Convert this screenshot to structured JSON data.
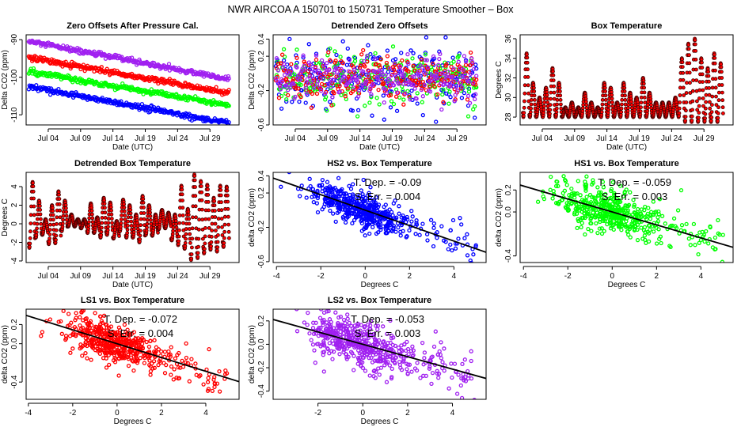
{
  "title": "NWR   AIRCOA A   150701 to 150731   Temperature Smoother – Box",
  "chart_data": [
    {
      "type": "scatter",
      "title": "Zero Offsets After Pressure Cal.",
      "xlabel": "Date (UTC)",
      "ylabel": "Delta CO2 (ppm)",
      "xlim": [
        "2015-06-30T14:00",
        "2015-08-02T12:00"
      ],
      "ylim": [
        -112.7,
        -88.7
      ],
      "x_ticks": [
        {
          "label": "Jul 04",
          "date": "2015-07-04"
        },
        {
          "label": "Jul 09",
          "date": "2015-07-09"
        },
        {
          "label": "Jul 14",
          "date": "2015-07-14"
        },
        {
          "label": "Jul 19",
          "date": "2015-07-19"
        },
        {
          "label": "Jul 24",
          "date": "2015-07-24"
        },
        {
          "label": "Jul 29",
          "date": "2015-07-29"
        }
      ],
      "y_ticks": [
        {
          "label": "-90",
          "value": -90
        },
        {
          "label": "-100",
          "value": -100
        },
        {
          "label": "-110",
          "value": -110
        }
      ],
      "series": [
        {
          "color": "#a020f0",
          "trend": {
            "start_date": "2015-07-01",
            "start": -90.5,
            "end_date": "2015-08-01",
            "end": -100.5
          }
        },
        {
          "color": "#ff0000",
          "trend": {
            "start_date": "2015-07-01",
            "start": -94.8,
            "end_date": "2015-08-01",
            "end": -104.2
          }
        },
        {
          "color": "#00ff00",
          "trend": {
            "start_date": "2015-07-01",
            "start": -98.5,
            "end_date": "2015-08-01",
            "end": -107.5
          }
        },
        {
          "color": "#0000ff",
          "trend": {
            "start_date": "2015-07-01",
            "start": -102.5,
            "end_date": "2015-08-01",
            "end": -112.3
          }
        }
      ]
    },
    {
      "type": "scatter",
      "title": "Detrended Zero Offsets",
      "xlabel": "Date (UTC)",
      "ylabel": "Delta CO2 (ppm)",
      "xlim": [
        "2015-06-30T14:00",
        "2015-08-02T12:00"
      ],
      "ylim": [
        -0.6,
        0.45
      ],
      "x_ticks": [
        {
          "label": "Jul 04",
          "date": "2015-07-04"
        },
        {
          "label": "Jul 09",
          "date": "2015-07-09"
        },
        {
          "label": "Jul 14",
          "date": "2015-07-14"
        },
        {
          "label": "Jul 19",
          "date": "2015-07-19"
        },
        {
          "label": "Jul 24",
          "date": "2015-07-24"
        },
        {
          "label": "Jul 29",
          "date": "2015-07-29"
        }
      ],
      "y_ticks": [
        {
          "label": "0.4",
          "value": 0.4
        },
        {
          "label": "0.2",
          "value": 0.2
        },
        {
          "label": "-0.2",
          "value": -0.2
        },
        {
          "label": "-0.6",
          "value": -0.6
        }
      ],
      "series": [
        {
          "color": "#0000ff",
          "range": [
            -0.57,
            0.42
          ]
        },
        {
          "color": "#00ff00",
          "range": [
            -0.5,
            0.37
          ]
        },
        {
          "color": "#ff0000",
          "range": [
            -0.45,
            0.3
          ]
        },
        {
          "color": "#a020f0",
          "range": [
            -0.42,
            0.25
          ]
        }
      ]
    },
    {
      "type": "scatter",
      "title": "Box Temperature",
      "xlabel": "Date (UTC)",
      "ylabel": "Degrees C",
      "xlim": [
        "2015-06-30T14:00",
        "2015-08-02T12:00"
      ],
      "ylim": [
        27.2,
        36.4
      ],
      "x_ticks": [
        {
          "label": "Jul 04",
          "date": "2015-07-04"
        },
        {
          "label": "Jul 09",
          "date": "2015-07-09"
        },
        {
          "label": "Jul 14",
          "date": "2015-07-14"
        },
        {
          "label": "Jul 19",
          "date": "2015-07-19"
        },
        {
          "label": "Jul 24",
          "date": "2015-07-24"
        },
        {
          "label": "Jul 29",
          "date": "2015-07-29"
        }
      ],
      "y_ticks": [
        {
          "label": "28",
          "value": 28
        },
        {
          "label": "30",
          "value": 30
        },
        {
          "label": "32",
          "value": 32
        },
        {
          "label": "34",
          "value": 34
        },
        {
          "label": "36",
          "value": 36
        }
      ],
      "series": [
        {
          "color": "#ff0000",
          "daily_min": [
            28,
            28,
            28,
            28,
            28,
            28,
            28,
            28,
            28,
            28,
            28,
            28,
            28,
            28,
            28,
            28,
            28,
            28,
            28,
            28,
            28,
            28,
            28,
            28,
            28,
            27.5,
            27.5,
            27.5,
            27.5,
            27.5,
            27.5
          ],
          "daily_max": [
            34.5,
            31.5,
            30,
            31,
            33,
            31.5,
            29,
            29.5,
            29,
            30.5,
            29.5,
            29,
            31.5,
            31,
            29.5,
            31.5,
            30.5,
            30,
            32,
            30.5,
            29.5,
            29.5,
            29.5,
            30,
            34,
            35.5,
            36,
            34,
            33,
            34.5,
            33.5
          ]
        }
      ]
    },
    {
      "type": "scatter",
      "title": "Detrended Box Temperature",
      "xlabel": "Date (UTC)",
      "ylabel": "Degrees C",
      "xlim": [
        "2015-06-30T14:00",
        "2015-08-02T12:00"
      ],
      "ylim": [
        -4.17,
        5.53
      ],
      "x_ticks": [
        {
          "label": "Jul 04",
          "date": "2015-07-04"
        },
        {
          "label": "Jul 09",
          "date": "2015-07-09"
        },
        {
          "label": "Jul 14",
          "date": "2015-07-14"
        },
        {
          "label": "Jul 19",
          "date": "2015-07-19"
        },
        {
          "label": "Jul 24",
          "date": "2015-07-24"
        },
        {
          "label": "Jul 29",
          "date": "2015-07-29"
        }
      ],
      "y_ticks": [
        {
          "label": "-4",
          "value": -4
        },
        {
          "label": "-2",
          "value": -2
        },
        {
          "label": "0",
          "value": 0
        },
        {
          "label": "2",
          "value": 2
        },
        {
          "label": "4",
          "value": 4
        }
      ],
      "series": [
        {
          "color": "#ff0000",
          "daily_min": [
            -2.6,
            -1.5,
            -1.2,
            -2.2,
            -2.1,
            -0.8,
            -0.3,
            -0.3,
            -0.5,
            -1,
            -1,
            -1.5,
            -1.2,
            -1.6,
            -0.8,
            -1.5,
            -1.5,
            -2,
            -1.2,
            -1.3,
            -0.6,
            -0.5,
            -1.8,
            -2.3,
            -2.7,
            -3.9,
            -3.7,
            -3.2,
            -2.8,
            -3,
            -2.5
          ],
          "daily_max": [
            4.5,
            2.5,
            0.5,
            2,
            3.5,
            2.5,
            1,
            0.5,
            0.5,
            2.2,
            0.7,
            2.8,
            2.3,
            0.3,
            2.6,
            2,
            1,
            3,
            2,
            1,
            1.5,
            1.2,
            1,
            4.1,
            1.6,
            5.3,
            4.6,
            4.2,
            2.8,
            4.1,
            4
          ]
        }
      ]
    },
    {
      "type": "scatter",
      "title": "HS2 vs. Box Temperature",
      "xlabel": "Degrees C",
      "ylabel": "delta CO2 (ppm)",
      "xlim": [
        -4.15,
        5.45
      ],
      "ylim": [
        -0.61,
        0.44
      ],
      "x_ticks": [
        {
          "label": "-4",
          "value": -4
        },
        {
          "label": "-2",
          "value": -2
        },
        {
          "label": "0",
          "value": 0
        },
        {
          "label": "2",
          "value": 2
        },
        {
          "label": "4",
          "value": 4
        }
      ],
      "y_ticks": [
        {
          "label": "0.4",
          "value": 0.4
        },
        {
          "label": "0.2",
          "value": 0.2
        },
        {
          "label": "-0.2",
          "value": -0.2
        },
        {
          "label": "-0.6",
          "value": -0.6
        }
      ],
      "series": [
        {
          "color": "#0000ff",
          "regression": {
            "slope": -0.09,
            "intercept": 0.0
          }
        }
      ],
      "annotations": [
        "T. Dep. =  -0.09",
        "S. Err. =  0.004"
      ]
    },
    {
      "type": "scatter",
      "title": "HS1 vs. Box Temperature",
      "xlabel": "Degrees C",
      "ylabel": "delta CO2 (ppm)",
      "xlim": [
        -4.15,
        5.45
      ],
      "ylim": [
        -0.46,
        0.36
      ],
      "x_ticks": [
        {
          "label": "-4",
          "value": -4
        },
        {
          "label": "-2",
          "value": -2
        },
        {
          "label": "0",
          "value": 0
        },
        {
          "label": "2",
          "value": 2
        },
        {
          "label": "4",
          "value": 4
        }
      ],
      "y_ticks": [
        {
          "label": "0.2",
          "value": 0.2
        },
        {
          "label": "0.0",
          "value": 0.0
        },
        {
          "label": "-0.4",
          "value": -0.4
        }
      ],
      "series": [
        {
          "color": "#00ff00",
          "regression": {
            "slope": -0.059,
            "intercept": 0.0
          }
        }
      ],
      "annotations": [
        "T. Dep. =  -0.059",
        "S. Err. =  0.003"
      ]
    },
    {
      "type": "scatter",
      "title": "LS1 vs. Box Temperature",
      "xlabel": "Degrees C",
      "ylabel": "delta CO2 (ppm)",
      "xlim": [
        -4.1,
        5.5
      ],
      "ylim": [
        -0.58,
        0.36
      ],
      "x_ticks": [
        {
          "label": "-4",
          "value": -4
        },
        {
          "label": "-2",
          "value": -2
        },
        {
          "label": "0",
          "value": 0
        },
        {
          "label": "2",
          "value": 2
        },
        {
          "label": "4",
          "value": 4
        }
      ],
      "y_ticks": [
        {
          "label": "0.2",
          "value": 0.2
        },
        {
          "label": "0.0",
          "value": 0.0
        },
        {
          "label": "-0.4",
          "value": -0.4
        }
      ],
      "series": [
        {
          "color": "#ff0000",
          "regression": {
            "slope": -0.072,
            "intercept": 0.0
          }
        }
      ],
      "annotations": [
        "T. Dep. =  -0.072",
        "S. Err. =  0.004"
      ]
    },
    {
      "type": "scatter",
      "title": "LS2 vs. Box Temperature",
      "xlabel": "Degrees C",
      "ylabel": "delta CO2 (ppm)",
      "xlim": [
        -4.0,
        5.5
      ],
      "ylim": [
        -0.47,
        0.3
      ],
      "x_ticks": [
        {
          "label": "-2",
          "value": -2
        },
        {
          "label": "0",
          "value": 0
        },
        {
          "label": "2",
          "value": 2
        },
        {
          "label": "4",
          "value": 4
        }
      ],
      "y_ticks": [
        {
          "label": "0.2",
          "value": 0.2
        },
        {
          "label": "0.0",
          "value": 0.0
        },
        {
          "label": "-0.2",
          "value": -0.2
        },
        {
          "label": "-0.4",
          "value": -0.4
        }
      ],
      "series": [
        {
          "color": "#a020f0",
          "regression": {
            "slope": -0.053,
            "intercept": 0.0
          }
        }
      ],
      "annotations": [
        "T. Dep. =  -0.053",
        "S. Err. =  0.003"
      ]
    }
  ]
}
